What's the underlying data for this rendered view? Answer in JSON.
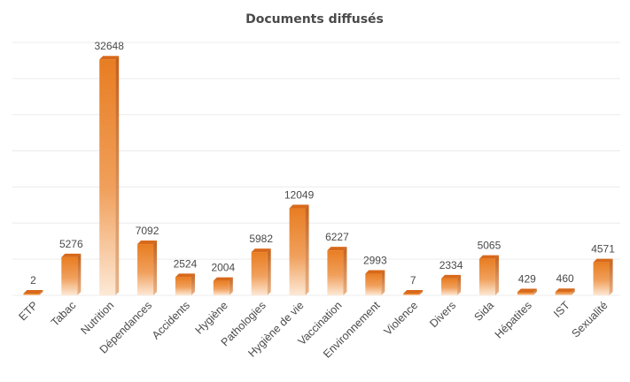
{
  "chart_data": {
    "type": "bar",
    "title": "Documents diffusés",
    "categories": [
      "ETP",
      "Tabac",
      "Nutrition",
      "Dépendances",
      "Accidents",
      "Hygiène",
      "Pathologies",
      "Hygiène de vie",
      "Vaccination",
      "Environnement",
      "Violence",
      "Divers",
      "Sida",
      "Hépatites",
      "IST",
      "Sexualité"
    ],
    "values": [
      2,
      5276,
      32648,
      7092,
      2524,
      2004,
      5982,
      12049,
      6227,
      2993,
      7,
      2334,
      5065,
      429,
      460,
      4571
    ],
    "ylim": [
      0,
      35000
    ],
    "grid": true,
    "legend": "none",
    "colors": {
      "bar_top": "#e87d22",
      "bar_bottom": "#fde9d6",
      "bar_side": "#c4601a",
      "text": "#4a4a4a",
      "grid": "#ececec"
    }
  }
}
